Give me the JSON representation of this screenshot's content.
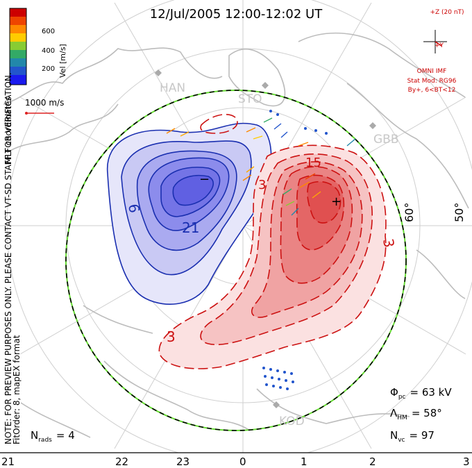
{
  "title": "12/Jul/2005 12:00-12:02 UT",
  "colorbar": {
    "axis_label": "Vel [m/s]",
    "ticks": [
      "600",
      "400",
      "200"
    ],
    "colors": [
      "#cc0000",
      "#ee4400",
      "#ff8800",
      "#ffcc00",
      "#88cc33",
      "#33aa66",
      "#2288aa",
      "#2255cc",
      "#1a1aee"
    ]
  },
  "side_labels": {
    "mlt": "MLT coordinates",
    "note": "NOTE: FOR PREVIEW PURPOSES ONLY. PLEASE CONTACT VT-SD STAFF FOR VERIFICATION.",
    "fit": "FitOrder: 8, mapEX format"
  },
  "scale_vector": {
    "label": "1000 m/s"
  },
  "imf": {
    "z_label": "+Z (20 nT)",
    "y_label": "+Y",
    "source": "OMNI IMF",
    "stat_mod": "Stat Mod: RG96",
    "condition": "By+, 6<BT<12"
  },
  "stations": [
    "HAN",
    "STO",
    "GBB",
    "KOD"
  ],
  "latitude_labels": [
    "60°",
    "50°"
  ],
  "contour_labels": {
    "neg": [
      "6",
      "21"
    ],
    "pos": [
      "3",
      "15",
      "3",
      "3"
    ],
    "min_marker": "−",
    "max_marker": "+"
  },
  "stats": {
    "phi_pc": "Φpc = 63 kV",
    "phi_symbol": "Φ",
    "phi_sub": "pc",
    "phi_value": "= 63 kV",
    "lambda_symbol": "Λ",
    "lambda_sub": "HM",
    "lambda_value": "= 58°",
    "nvc_symbol": "N",
    "nvc_sub": "vc",
    "nvc_value": "= 97",
    "nrads_symbol": "N",
    "nrads_sub": "rads",
    "nrads_value": "= 4"
  },
  "mlt_axis": [
    "21",
    "22",
    "23",
    "0",
    "1",
    "2",
    "3"
  ],
  "colors": {
    "neg_fill": "#6f6fe8",
    "neg_line": "#1a2fb0",
    "pos_fill": "#e86060",
    "pos_line": "#cc1111",
    "grid": "#c8c8c8",
    "coast": "#bdbdbd",
    "boundary_green": "#66dd33"
  }
}
